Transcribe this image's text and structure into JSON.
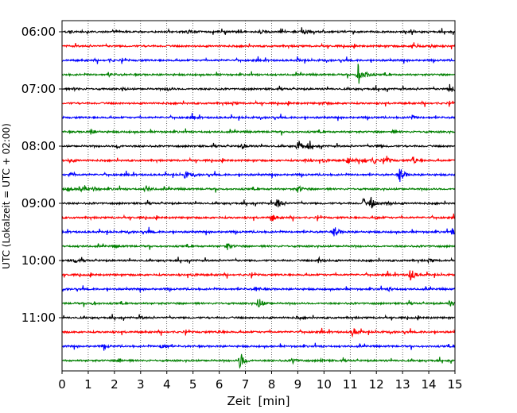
{
  "chart_data": {
    "type": "line",
    "title": "",
    "xlabel": "Zeit  [min]",
    "ylabel": "UTC (Lokalzeit = UTC + 02:00)",
    "xlim": [
      0,
      15
    ],
    "x_ticks": [
      0,
      1,
      2,
      3,
      4,
      5,
      6,
      7,
      8,
      9,
      10,
      11,
      12,
      13,
      14,
      15
    ],
    "x_tick_labels": [
      "0",
      "1",
      "2",
      "3",
      "4",
      "5",
      "6",
      "7",
      "8",
      "9",
      "10",
      "11",
      "12",
      "13",
      "14",
      "15"
    ],
    "y_tick_labels": [
      {
        "row": 0,
        "label": "06:00"
      },
      {
        "row": 4,
        "label": "07:00"
      },
      {
        "row": 8,
        "label": "08:00"
      },
      {
        "row": 12,
        "label": "09:00"
      },
      {
        "row": 16,
        "label": "10:00"
      },
      {
        "row": 20,
        "label": "11:00"
      }
    ],
    "grid": {
      "x": true,
      "y": false,
      "style": "dotted"
    },
    "colors": [
      "#000000",
      "#ff0000",
      "#0000ff",
      "#008000"
    ],
    "rows": [
      {
        "start": "06:00",
        "color": "#000000",
        "events": [
          {
            "t": 9.2,
            "amp": 0.4
          },
          {
            "t": 7.6,
            "amp": 0.25
          },
          {
            "t": 4.8,
            "amp": 0.2
          },
          {
            "t": 0.3,
            "amp": 0.15
          }
        ]
      },
      {
        "start": "06:15",
        "color": "#ff0000",
        "events": [
          {
            "t": 13.4,
            "amp": 0.6
          },
          {
            "t": 14.1,
            "amp": 0.2
          }
        ]
      },
      {
        "start": "06:30",
        "color": "#0000ff",
        "events": [
          {
            "t": 1.8,
            "amp": 0.15
          },
          {
            "t": 9.0,
            "amp": 0.15
          }
        ]
      },
      {
        "start": "06:45",
        "color": "#008000",
        "events": [
          {
            "t": 11.3,
            "amp": 1.5
          },
          {
            "t": 11.6,
            "amp": 0.3
          },
          {
            "t": 1.8,
            "amp": 0.2
          }
        ]
      },
      {
        "start": "07:00",
        "color": "#000000",
        "events": [
          {
            "t": 14.8,
            "amp": 0.6
          },
          {
            "t": 4.0,
            "amp": 0.3
          },
          {
            "t": 0.5,
            "amp": 0.2
          },
          {
            "t": 2.3,
            "amp": 0.2
          }
        ]
      },
      {
        "start": "07:15",
        "color": "#ff0000",
        "events": [
          {
            "t": 6.5,
            "amp": 0.15
          },
          {
            "t": 10.0,
            "amp": 0.15
          }
        ]
      },
      {
        "start": "07:30",
        "color": "#0000ff",
        "events": [
          {
            "t": 13.3,
            "amp": 0.4
          },
          {
            "t": 5.0,
            "amp": 0.15
          }
        ]
      },
      {
        "start": "07:45",
        "color": "#008000",
        "events": [
          {
            "t": 1.1,
            "amp": 0.4
          },
          {
            "t": 12.6,
            "amp": 0.2
          }
        ]
      },
      {
        "start": "08:00",
        "color": "#000000",
        "events": [
          {
            "t": 9.0,
            "amp": 1.0
          },
          {
            "t": 9.4,
            "amp": 0.4
          },
          {
            "t": 6.9,
            "amp": 0.4
          },
          {
            "t": 2.1,
            "amp": 0.3
          },
          {
            "t": 12.0,
            "amp": 0.2
          }
        ]
      },
      {
        "start": "08:15",
        "color": "#ff0000",
        "events": [
          {
            "t": 10.9,
            "amp": 0.5
          },
          {
            "t": 11.5,
            "amp": 0.6
          },
          {
            "t": 11.9,
            "amp": 0.5
          },
          {
            "t": 12.4,
            "amp": 0.4
          },
          {
            "t": 13.4,
            "amp": 0.6
          },
          {
            "t": 10.0,
            "amp": 0.3
          },
          {
            "t": 9.3,
            "amp": 0.2
          },
          {
            "t": 0.3,
            "amp": 0.25
          }
        ]
      },
      {
        "start": "08:30",
        "color": "#0000ff",
        "events": [
          {
            "t": 12.9,
            "amp": 1.1
          },
          {
            "t": 4.7,
            "amp": 0.5
          },
          {
            "t": 0.3,
            "amp": 0.25
          }
        ]
      },
      {
        "start": "08:45",
        "color": "#008000",
        "events": [
          {
            "t": 0.7,
            "amp": 0.6
          },
          {
            "t": 0.2,
            "amp": 0.4
          },
          {
            "t": 3.2,
            "amp": 0.5
          },
          {
            "t": 9.0,
            "amp": 0.5
          },
          {
            "t": 1.2,
            "amp": 0.3
          }
        ]
      },
      {
        "start": "09:00",
        "color": "#000000",
        "events": [
          {
            "t": 8.2,
            "amp": 1.0
          },
          {
            "t": 11.5,
            "amp": 0.6
          },
          {
            "t": 11.8,
            "amp": 0.8
          },
          {
            "t": 12.4,
            "amp": 0.4
          }
        ]
      },
      {
        "start": "09:15",
        "color": "#ff0000",
        "events": [
          {
            "t": 8.0,
            "amp": 0.6
          },
          {
            "t": 12.0,
            "amp": 0.15
          }
        ]
      },
      {
        "start": "09:30",
        "color": "#0000ff",
        "events": [
          {
            "t": 10.4,
            "amp": 0.8
          },
          {
            "t": 3.3,
            "amp": 0.2
          },
          {
            "t": 14.9,
            "amp": 0.4
          }
        ]
      },
      {
        "start": "09:45",
        "color": "#008000",
        "events": [
          {
            "t": 6.3,
            "amp": 0.5
          },
          {
            "t": 2.0,
            "amp": 0.2
          }
        ]
      },
      {
        "start": "10:00",
        "color": "#000000",
        "events": [
          {
            "t": 0.5,
            "amp": 0.3
          },
          {
            "t": 9.8,
            "amp": 0.4
          },
          {
            "t": 14.0,
            "amp": 0.2
          }
        ]
      },
      {
        "start": "10:15",
        "color": "#ff0000",
        "events": [
          {
            "t": 13.3,
            "amp": 1.0
          },
          {
            "t": 5.0,
            "amp": 0.2
          }
        ]
      },
      {
        "start": "10:30",
        "color": "#0000ff",
        "events": [
          {
            "t": 7.4,
            "amp": 0.3
          },
          {
            "t": 12.5,
            "amp": 0.2
          }
        ]
      },
      {
        "start": "10:45",
        "color": "#008000",
        "events": [
          {
            "t": 7.5,
            "amp": 0.9
          },
          {
            "t": 14.8,
            "amp": 0.4
          },
          {
            "t": 1.2,
            "amp": 0.2
          }
        ]
      },
      {
        "start": "11:00",
        "color": "#000000",
        "events": [
          {
            "t": 9.0,
            "amp": 0.2
          },
          {
            "t": 3.0,
            "amp": 0.15
          }
        ]
      },
      {
        "start": "11:15",
        "color": "#ff0000",
        "events": [
          {
            "t": 11.1,
            "amp": 0.7
          },
          {
            "t": 6.0,
            "amp": 0.2
          }
        ]
      },
      {
        "start": "11:30",
        "color": "#0000ff",
        "events": [
          {
            "t": 3.8,
            "amp": 0.7
          },
          {
            "t": 1.6,
            "amp": 0.3
          }
        ]
      },
      {
        "start": "11:45",
        "color": "#008000",
        "events": [
          {
            "t": 6.8,
            "amp": 1.3
          },
          {
            "t": 8.8,
            "amp": 0.4
          },
          {
            "t": 2.2,
            "amp": 0.3
          },
          {
            "t": 9.9,
            "amp": 0.2
          }
        ]
      }
    ]
  }
}
